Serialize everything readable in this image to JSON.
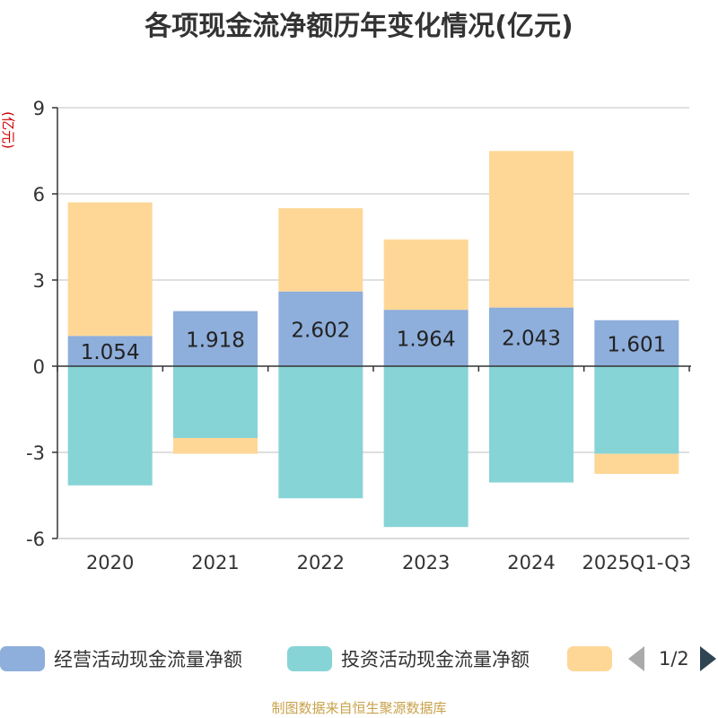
{
  "chart_data": {
    "type": "bar",
    "stacked": true,
    "title": "各项现金流净额历年变化情况(亿元)",
    "ylabel": "(亿元)",
    "xlabel": "",
    "ylim": [
      -6,
      9
    ],
    "yticks": [
      9,
      6,
      3,
      0,
      -3,
      -6
    ],
    "categories": [
      "2020",
      "2021",
      "2022",
      "2023",
      "2024",
      "2025Q1-Q3"
    ],
    "series": [
      {
        "name": "经营活动现金流量净额",
        "color": "#8eaedb",
        "values": [
          1.054,
          1.918,
          2.602,
          1.964,
          2.043,
          1.601
        ],
        "labels": [
          "1.054",
          "1.918",
          "2.602",
          "1.964",
          "2.043",
          "1.601"
        ]
      },
      {
        "name": "投资活动现金流量净额",
        "color": "#87d4d6",
        "values": [
          -4.15,
          -2.5,
          -4.6,
          -5.6,
          -4.05,
          -3.05
        ]
      },
      {
        "name": "",
        "color": "#fed797",
        "values": [
          4.65,
          -0.55,
          2.9,
          2.45,
          5.45,
          -0.7
        ]
      }
    ]
  },
  "legend": {
    "items": [
      {
        "label": "经营活动现金流量净额",
        "color": "#8eaedb"
      },
      {
        "label": "投资活动现金流量净额",
        "color": "#87d4d6"
      },
      {
        "label": "",
        "color": "#fed797"
      }
    ],
    "pager": "1/2"
  },
  "source": "制图数据来自恒生聚源数据库"
}
